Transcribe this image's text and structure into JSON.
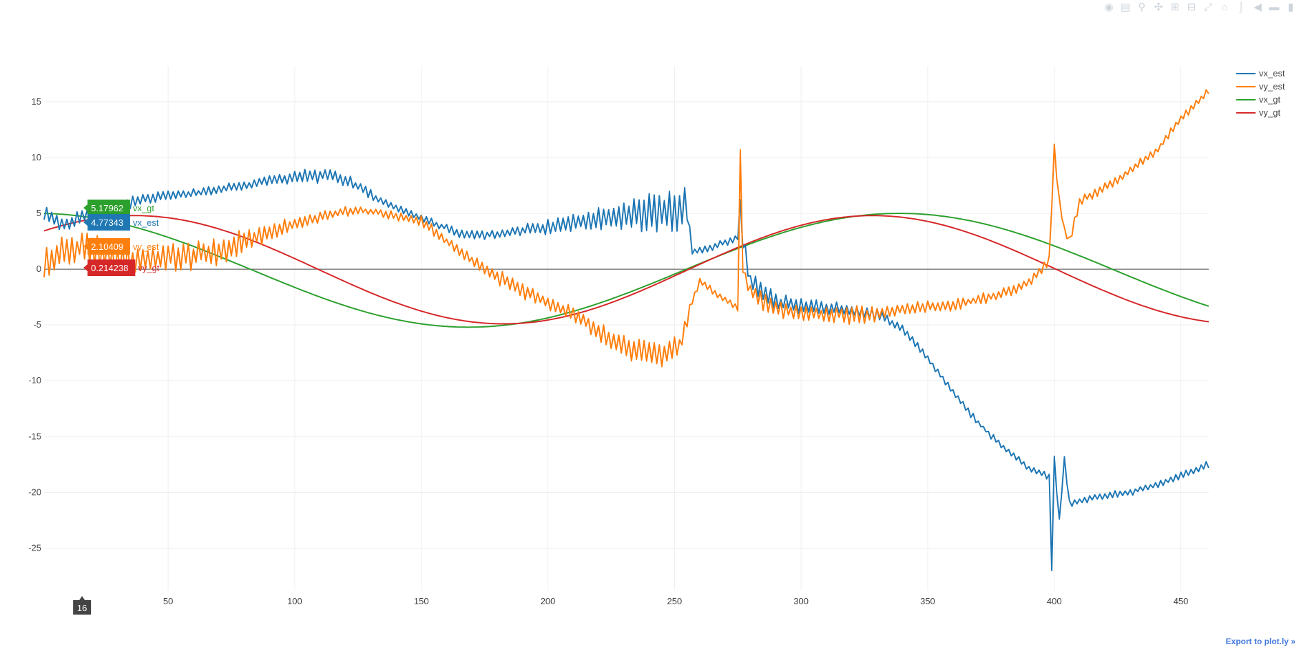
{
  "modebar": {
    "buttons": [
      "camera-icon",
      "save-icon",
      "zoom-icon",
      "pan-icon",
      "zoom-in-icon",
      "zoom-out-icon",
      "autoscale-icon",
      "reset-axes-icon",
      "spike-icon",
      "hover-closest-icon",
      "hover-compare-icon",
      "plotly-logo-icon"
    ]
  },
  "export_link": "Export to plot.ly »",
  "hover": {
    "x_label": "16",
    "items": [
      {
        "value": "5.17962",
        "name": "vx_gt",
        "color": "#2ca02c"
      },
      {
        "value": "4.77343",
        "name": "vx_est",
        "color": "#1f77b4"
      },
      {
        "value": "2.10409",
        "name": "vy_est",
        "color": "#ff7f0e"
      },
      {
        "value": "0.214238",
        "name": "vy_gt",
        "color": "#d62728"
      }
    ]
  },
  "chart_data": {
    "type": "line",
    "title": "",
    "xlabel": "",
    "ylabel": "",
    "xlim": [
      1,
      461
    ],
    "ylim": [
      -28.8,
      18.2
    ],
    "xticks": [
      50,
      100,
      150,
      200,
      250,
      300,
      350,
      400,
      450
    ],
    "yticks": [
      15,
      10,
      5,
      0,
      -5,
      -10,
      -15,
      -20,
      -25
    ],
    "grid": true,
    "zero_line": true,
    "legend_position": "top-right",
    "series": [
      {
        "name": "vx_est",
        "color": "#1f77b4",
        "kind": "knots",
        "knots": [
          [
            1,
            5.0
          ],
          [
            10,
            3.8
          ],
          [
            16,
            4.77
          ],
          [
            25,
            5.2
          ],
          [
            40,
            6.3
          ],
          [
            60,
            6.8
          ],
          [
            80,
            7.5
          ],
          [
            100,
            8.3
          ],
          [
            115,
            8.4
          ],
          [
            125,
            7.4
          ],
          [
            135,
            6.0
          ],
          [
            150,
            4.6
          ],
          [
            165,
            3.2
          ],
          [
            175,
            3.0
          ],
          [
            190,
            3.5
          ],
          [
            205,
            4.0
          ],
          [
            220,
            4.5
          ],
          [
            235,
            5.0
          ],
          [
            250,
            5.3
          ],
          [
            255,
            5.6
          ],
          [
            257,
            1.5
          ],
          [
            265,
            2.0
          ],
          [
            275,
            2.8
          ],
          [
            276,
            5.8
          ],
          [
            277,
            2.5
          ],
          [
            280,
            -1.0
          ],
          [
            290,
            -3.0
          ],
          [
            310,
            -3.5
          ],
          [
            330,
            -4.0
          ],
          [
            340,
            -5.3
          ],
          [
            350,
            -8.0
          ],
          [
            360,
            -11.0
          ],
          [
            370,
            -13.8
          ],
          [
            380,
            -16.0
          ],
          [
            390,
            -17.8
          ],
          [
            398,
            -18.6
          ],
          [
            399,
            -26.8
          ],
          [
            400,
            -17.0
          ],
          [
            402,
            -22.5
          ],
          [
            404,
            -17.0
          ],
          [
            406,
            -21.0
          ],
          [
            415,
            -20.5
          ],
          [
            430,
            -20.0
          ],
          [
            445,
            -19.0
          ],
          [
            461,
            -17.5
          ]
        ],
        "noise": [
          [
            1,
            0.6
          ],
          [
            30,
            0.6
          ],
          [
            60,
            0.35
          ],
          [
            80,
            0.4
          ],
          [
            120,
            0.6
          ],
          [
            135,
            0.3
          ],
          [
            180,
            0.4
          ],
          [
            225,
            0.9
          ],
          [
            240,
            1.7
          ],
          [
            255,
            1.9
          ],
          [
            256,
            0.3
          ],
          [
            275,
            0.3
          ],
          [
            280,
            0.9
          ],
          [
            300,
            0.6
          ],
          [
            330,
            0.5
          ],
          [
            340,
            0.3
          ],
          [
            461,
            0.3
          ]
        ]
      },
      {
        "name": "vy_est",
        "color": "#ff7f0e",
        "kind": "knots",
        "knots": [
          [
            1,
            0.5
          ],
          [
            16,
            2.1
          ],
          [
            30,
            0.8
          ],
          [
            50,
            1.0
          ],
          [
            70,
            1.5
          ],
          [
            85,
            3.0
          ],
          [
            100,
            4.0
          ],
          [
            115,
            5.0
          ],
          [
            125,
            5.3
          ],
          [
            135,
            5.0
          ],
          [
            150,
            4.3
          ],
          [
            160,
            2.5
          ],
          [
            175,
            0.0
          ],
          [
            190,
            -2.0
          ],
          [
            200,
            -3.0
          ],
          [
            210,
            -4.0
          ],
          [
            220,
            -5.5
          ],
          [
            230,
            -7.0
          ],
          [
            245,
            -7.7
          ],
          [
            252,
            -7.0
          ],
          [
            256,
            -3.5
          ],
          [
            260,
            -1.0
          ],
          [
            265,
            -2.0
          ],
          [
            275,
            -3.5
          ],
          [
            276,
            10.5
          ],
          [
            277,
            0.0
          ],
          [
            280,
            -2.0
          ],
          [
            290,
            -3.5
          ],
          [
            300,
            -4.0
          ],
          [
            315,
            -4.0
          ],
          [
            330,
            -4.0
          ],
          [
            345,
            -3.5
          ],
          [
            360,
            -3.2
          ],
          [
            375,
            -2.5
          ],
          [
            385,
            -1.8
          ],
          [
            392,
            -0.8
          ],
          [
            398,
            0.8
          ],
          [
            400,
            11.0
          ],
          [
            402,
            6.0
          ],
          [
            404,
            3.5
          ],
          [
            406,
            2.5
          ],
          [
            410,
            6.0
          ],
          [
            425,
            8.0
          ],
          [
            440,
            10.5
          ],
          [
            450,
            13.5
          ],
          [
            461,
            16.0
          ]
        ],
        "noise": [
          [
            1,
            1.5
          ],
          [
            20,
            1.6
          ],
          [
            40,
            1.0
          ],
          [
            60,
            1.4
          ],
          [
            80,
            0.9
          ],
          [
            100,
            0.6
          ],
          [
            130,
            0.3
          ],
          [
            180,
            0.6
          ],
          [
            210,
            0.6
          ],
          [
            240,
            1.1
          ],
          [
            255,
            1.0
          ],
          [
            256,
            0.3
          ],
          [
            275,
            0.3
          ],
          [
            280,
            0.8
          ],
          [
            300,
            0.7
          ],
          [
            320,
            0.8
          ],
          [
            340,
            0.5
          ],
          [
            380,
            0.45
          ],
          [
            398,
            0.4
          ],
          [
            420,
            0.4
          ],
          [
            461,
            0.3
          ]
        ]
      },
      {
        "name": "vx_gt",
        "color": "#2ca02c",
        "kind": "sine",
        "c": -0.1,
        "a": 5.1,
        "phase": 0.0495,
        "period": 340.5
      },
      {
        "name": "vy_gt",
        "color": "#d62728",
        "kind": "sine",
        "c": -0.05,
        "a": 4.85,
        "phase": -0.77,
        "period": 291.5
      }
    ]
  }
}
